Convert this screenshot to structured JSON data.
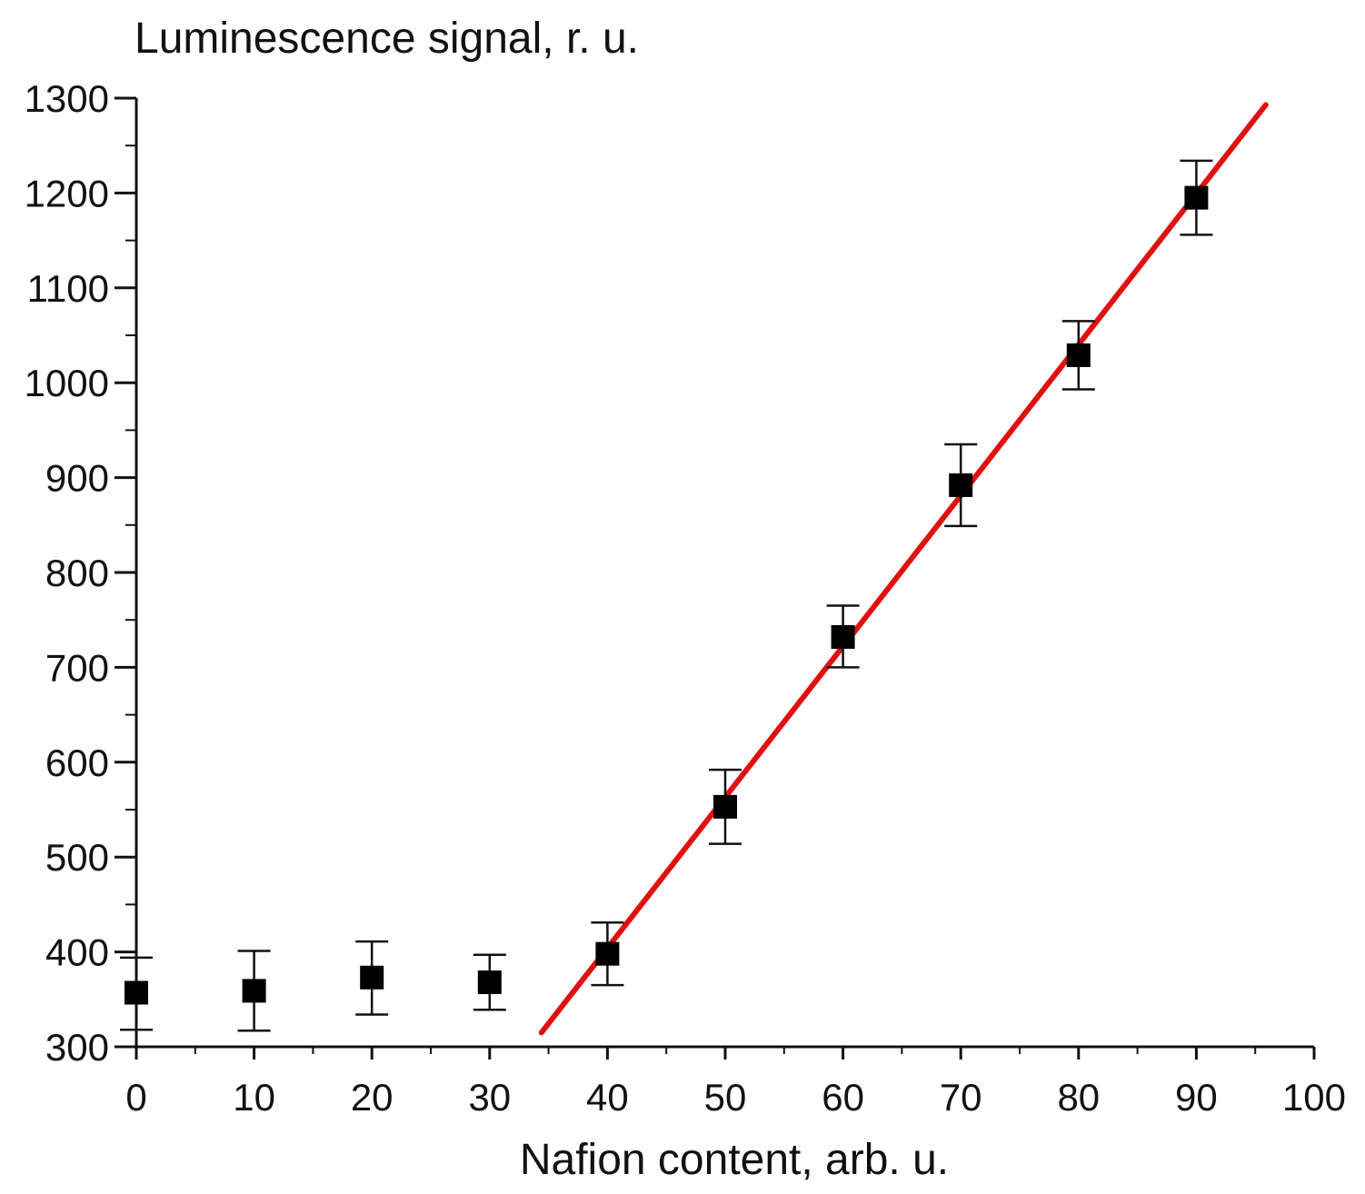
{
  "chart_data": {
    "type": "scatter",
    "xlabel": "Nafion content, arb. u.",
    "ylabel": "Luminescence signal, r. u.",
    "xlim": [
      0,
      100
    ],
    "ylim": [
      300,
      1300
    ],
    "x_ticks": [
      "0",
      "10",
      "20",
      "30",
      "40",
      "50",
      "60",
      "70",
      "80",
      "90",
      "100"
    ],
    "y_ticks": [
      "300",
      "400",
      "500",
      "600",
      "700",
      "800",
      "900",
      "1000",
      "1100",
      "1200",
      "1300"
    ],
    "grid": false,
    "legend": "none",
    "marker_color": "#000000",
    "fit_color": "#e01010",
    "series": [
      {
        "x": [
          0,
          10,
          20,
          30,
          40,
          50,
          60,
          70,
          80,
          90
        ],
        "y": [
          357,
          359,
          373,
          368,
          398,
          553,
          732,
          892,
          1029,
          1195
        ],
        "yerr_low": [
          318,
          317,
          334,
          339,
          365,
          514,
          700,
          849,
          993,
          1156
        ],
        "yerr_high": [
          394,
          401,
          411,
          397,
          431,
          592,
          765,
          935,
          1065,
          1234
        ]
      }
    ],
    "fit_line": {
      "x": [
        34.4,
        95.9
      ],
      "y": [
        315,
        1293
      ]
    }
  }
}
